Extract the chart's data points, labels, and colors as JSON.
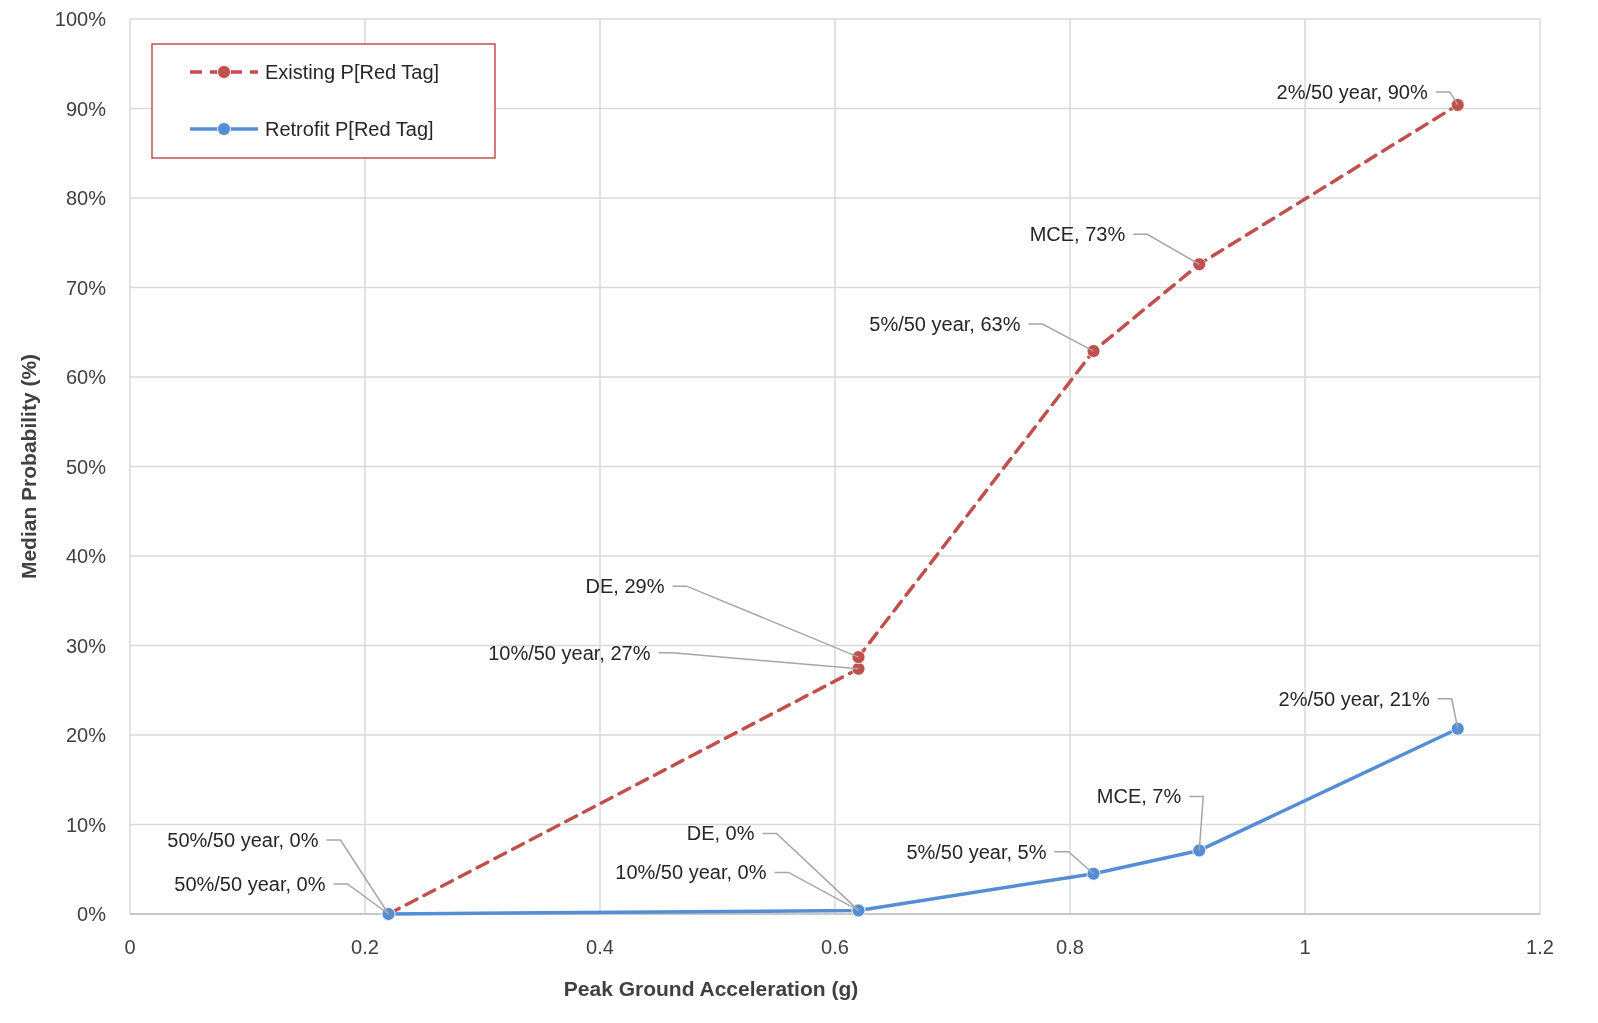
{
  "chart_data": {
    "type": "line",
    "xlabel": "Peak Ground Acceleration (g)",
    "ylabel": "Median Probability (%)",
    "xlim": [
      0,
      1.2
    ],
    "xticks": [
      0,
      0.2,
      0.4,
      0.6,
      0.8,
      1,
      1.2
    ],
    "ylim": [
      0,
      100
    ],
    "yticks": [
      {
        "value": 0,
        "label": "0%"
      },
      {
        "value": 10,
        "label": "10%"
      },
      {
        "value": 20,
        "label": "20%"
      },
      {
        "value": 30,
        "label": "30%"
      },
      {
        "value": 40,
        "label": "40%"
      },
      {
        "value": 50,
        "label": "50%"
      },
      {
        "value": 60,
        "label": "60%"
      },
      {
        "value": 70,
        "label": "70%"
      },
      {
        "value": 80,
        "label": "80%"
      },
      {
        "value": 90,
        "label": "90%"
      },
      {
        "value": 100,
        "label": "100%"
      }
    ],
    "grid": true,
    "legend": "top left",
    "marker": "circle",
    "series": [
      {
        "name": "Existing P[Red Tag]",
        "color": "#c0504d",
        "line_style": "dashed",
        "x": [
          0.22,
          0.62,
          0.62,
          0.82,
          0.91,
          1.13
        ],
        "values": [
          0,
          27.4,
          28.7,
          62.9,
          72.6,
          90.4
        ]
      },
      {
        "name": "Retrofit P[Red Tag]",
        "color": "#558ed5",
        "line_style": "solid",
        "x": [
          0.22,
          0.62,
          0.62,
          0.82,
          0.91,
          1.13
        ],
        "values": [
          0,
          0.4,
          0.4,
          4.5,
          7.1,
          20.7
        ]
      }
    ],
    "annotations": [
      {
        "text": "2%/50 year, 90%",
        "x": 1.13,
        "y": 90.4
      },
      {
        "text": "MCE, 73%",
        "x": 0.91,
        "y": 72.6
      },
      {
        "text": "5%/50 year, 63%",
        "x": 0.82,
        "y": 62.9
      },
      {
        "text": "DE, 29%",
        "x": 0.62,
        "y": 28.7
      },
      {
        "text": "10%/50 year, 27%",
        "x": 0.62,
        "y": 27.4
      },
      {
        "text": "50%/50 year, 0%",
        "x": 0.22,
        "y": 0
      },
      {
        "text": "50%/50 year, 0%",
        "x": 0.22,
        "y": 0
      },
      {
        "text": "2%/50 year, 21%",
        "x": 1.13,
        "y": 20.7
      },
      {
        "text": "MCE, 7%",
        "x": 0.91,
        "y": 7.1
      },
      {
        "text": "5%/50 year, 5%",
        "x": 0.82,
        "y": 4.5
      },
      {
        "text": "DE, 0%",
        "x": 0.62,
        "y": 0.4
      },
      {
        "text": "10%/50 year, 0%",
        "x": 0.62,
        "y": 0.4
      }
    ]
  }
}
